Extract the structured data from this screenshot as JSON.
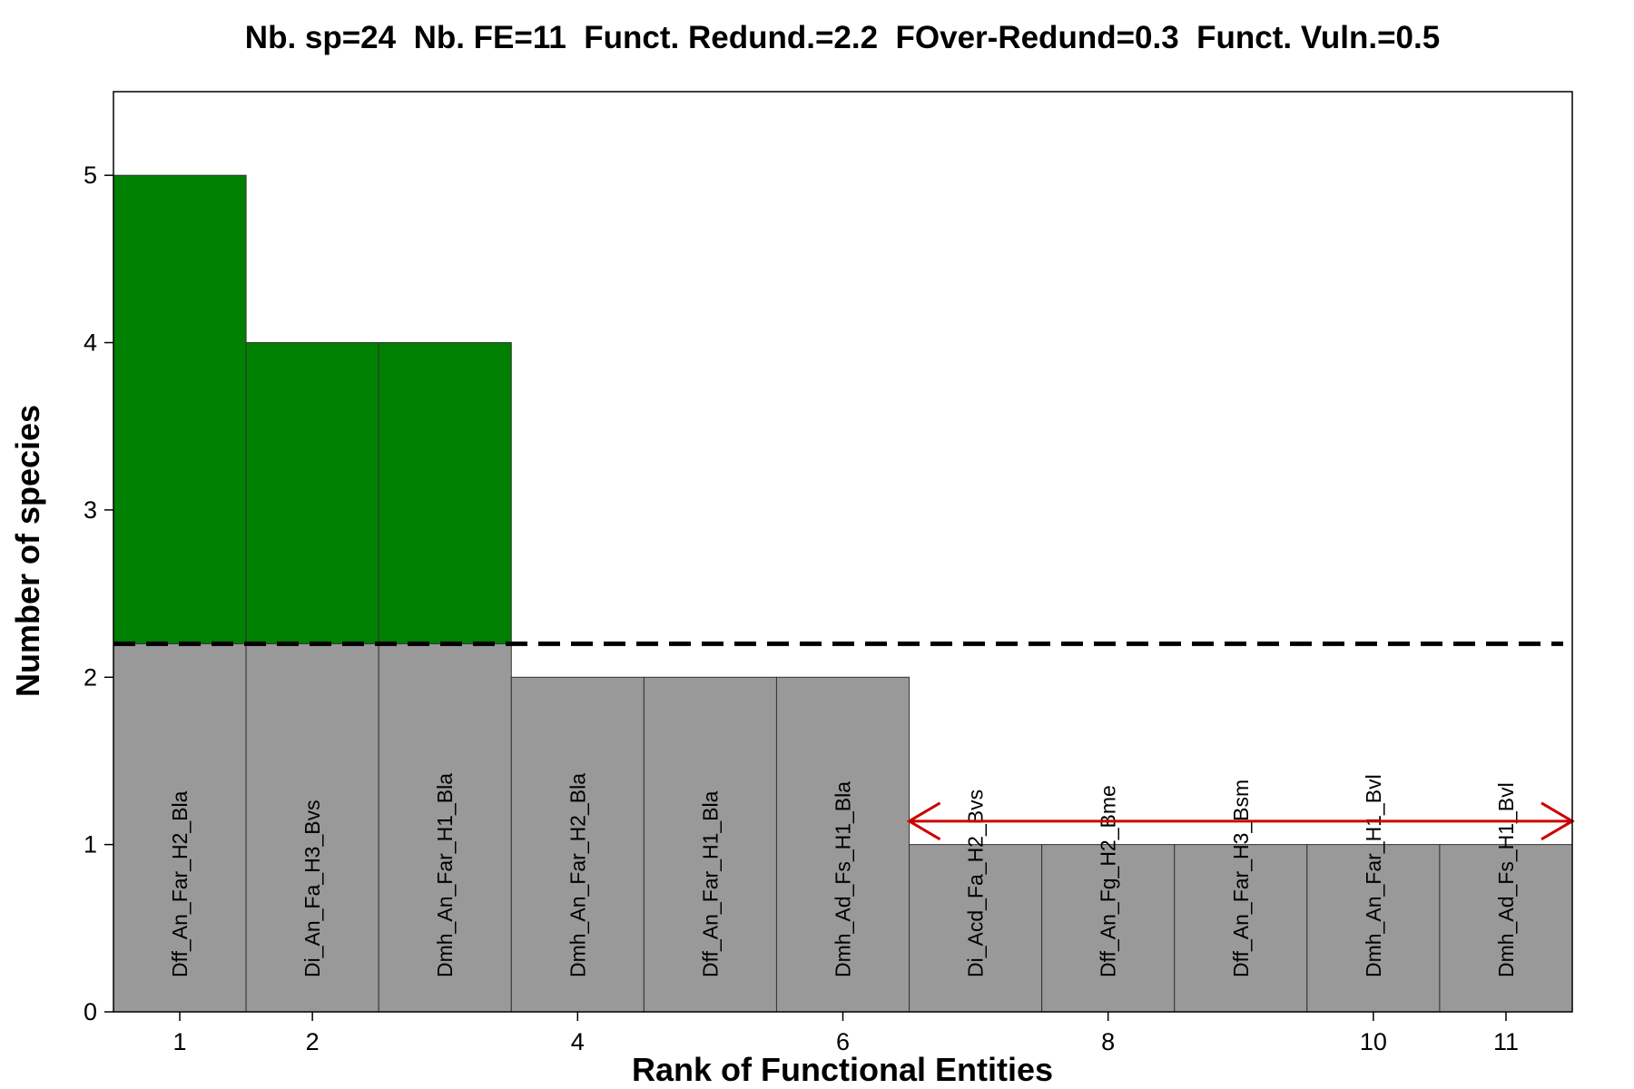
{
  "chart_data": {
    "type": "bar",
    "title": "Nb. sp=24  Nb. FE=11  Funct. Redund.=2.2  FOver-Redund=0.3  Funct. Vuln.=0.5",
    "xlabel": "Rank of Functional Entities",
    "ylabel": "Number of species",
    "ylim": [
      0,
      5.5
    ],
    "yticks": [
      0,
      1,
      2,
      3,
      4,
      5
    ],
    "xticks": [
      1,
      2,
      4,
      6,
      8,
      10,
      11
    ],
    "categories": [
      "Dff_An_Far_H2_Bla",
      "Di_An_Fa_H3_Bvs",
      "Dmh_An_Far_H1_Bla",
      "Dmh_An_Far_H2_Bla",
      "Dff_An_Far_H1_Bla",
      "Dmh_Ad_Fs_H1_Bla",
      "Di_Acd_Fa_H2_Bvs",
      "Dff_An_Fg_H2_Bme",
      "Dff_An_Far_H3_Bsm",
      "Dmh_An_Far_H1_Bvl",
      "Dmh_Ad_Fs_H1_Bvl"
    ],
    "values": [
      5,
      4,
      4,
      2,
      2,
      2,
      1,
      1,
      1,
      1,
      1
    ],
    "redundancy_line": 2.2,
    "vulnerability_arrow": {
      "from_rank": 6.5,
      "to_rank": 11.5,
      "y": 1.14
    },
    "colors": {
      "above_redundancy": "#008000",
      "below_redundancy": "#999999",
      "bar_border": "#333333",
      "redundancy_line": "#000000",
      "vulnerability_arrow": "#cc0000"
    },
    "grid": false,
    "legend": "none"
  }
}
